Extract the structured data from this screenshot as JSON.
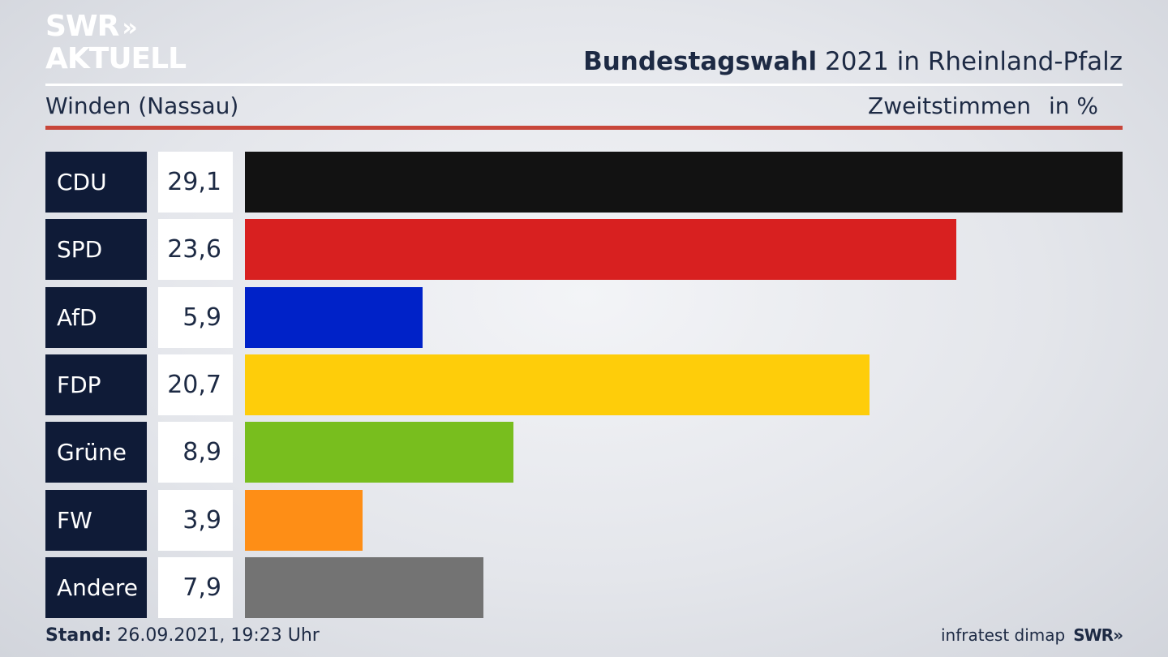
{
  "logo": {
    "line1": "SWR",
    "line2": "AKTUELL",
    "chevrons": "»"
  },
  "header": {
    "title_bold": "Bundestagswahl",
    "title_rest": " 2021 in Rheinland-Pfalz"
  },
  "subtitle": "Winden (Nassau)",
  "measure": {
    "label": "Zweitstimmen",
    "unit": "in %"
  },
  "chart_data": {
    "type": "bar",
    "orientation": "horizontal",
    "categories": [
      "CDU",
      "SPD",
      "AfD",
      "FDP",
      "Grüne",
      "FW",
      "Andere"
    ],
    "values": [
      29.1,
      23.6,
      5.9,
      20.7,
      8.9,
      3.9,
      7.9
    ],
    "value_labels": [
      "29,1",
      "23,6",
      "5,9",
      "20,7",
      "8,9",
      "3,9",
      "7,9"
    ],
    "colors": [
      "#121212",
      "#d82020",
      "#0022c8",
      "#fecd0a",
      "#78be1e",
      "#fe8e16",
      "#737373"
    ],
    "xlim": [
      0,
      29.1
    ]
  },
  "footer": {
    "stand_label": "Stand:",
    "stand_value": " 26.09.2021, 19:23 Uhr",
    "source": "infratest dimap",
    "brand": "SWR",
    "brand_chevrons": "»"
  }
}
